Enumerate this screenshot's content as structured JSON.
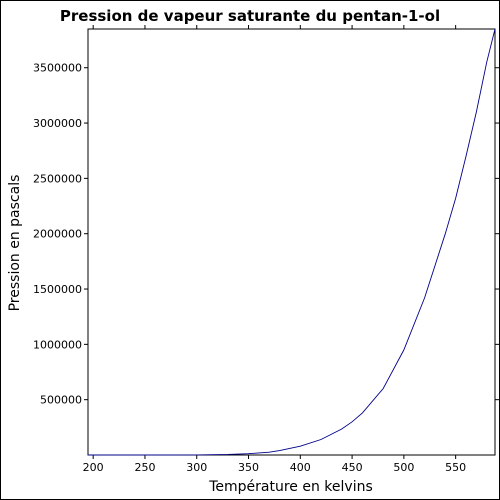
{
  "chart_data": {
    "type": "line",
    "title": "Pression de vapeur saturante du pentan-1-ol",
    "xlabel": "Température en kelvins",
    "ylabel": "Pression en pascals",
    "xlim": [
      195,
      588
    ],
    "ylim": [
      0,
      3850000
    ],
    "xticks": [
      200,
      250,
      300,
      350,
      400,
      450,
      500,
      550
    ],
    "yticks": [
      500000,
      1000000,
      1500000,
      2000000,
      2500000,
      3000000,
      3500000
    ],
    "grid": false,
    "line_color": "#00008b",
    "series": [
      {
        "x": [
          195,
          250,
          300,
          330,
          350,
          370,
          380,
          400,
          420,
          440,
          450,
          460,
          480,
          500,
          520,
          540,
          550,
          560,
          570,
          580,
          588
        ],
        "y": [
          0,
          30,
          1000,
          5000,
          12000,
          25000,
          40000,
          80000,
          140000,
          235000,
          300000,
          380000,
          600000,
          950000,
          1420000,
          2000000,
          2320000,
          2700000,
          3100000,
          3550000,
          3850000
        ]
      }
    ]
  }
}
